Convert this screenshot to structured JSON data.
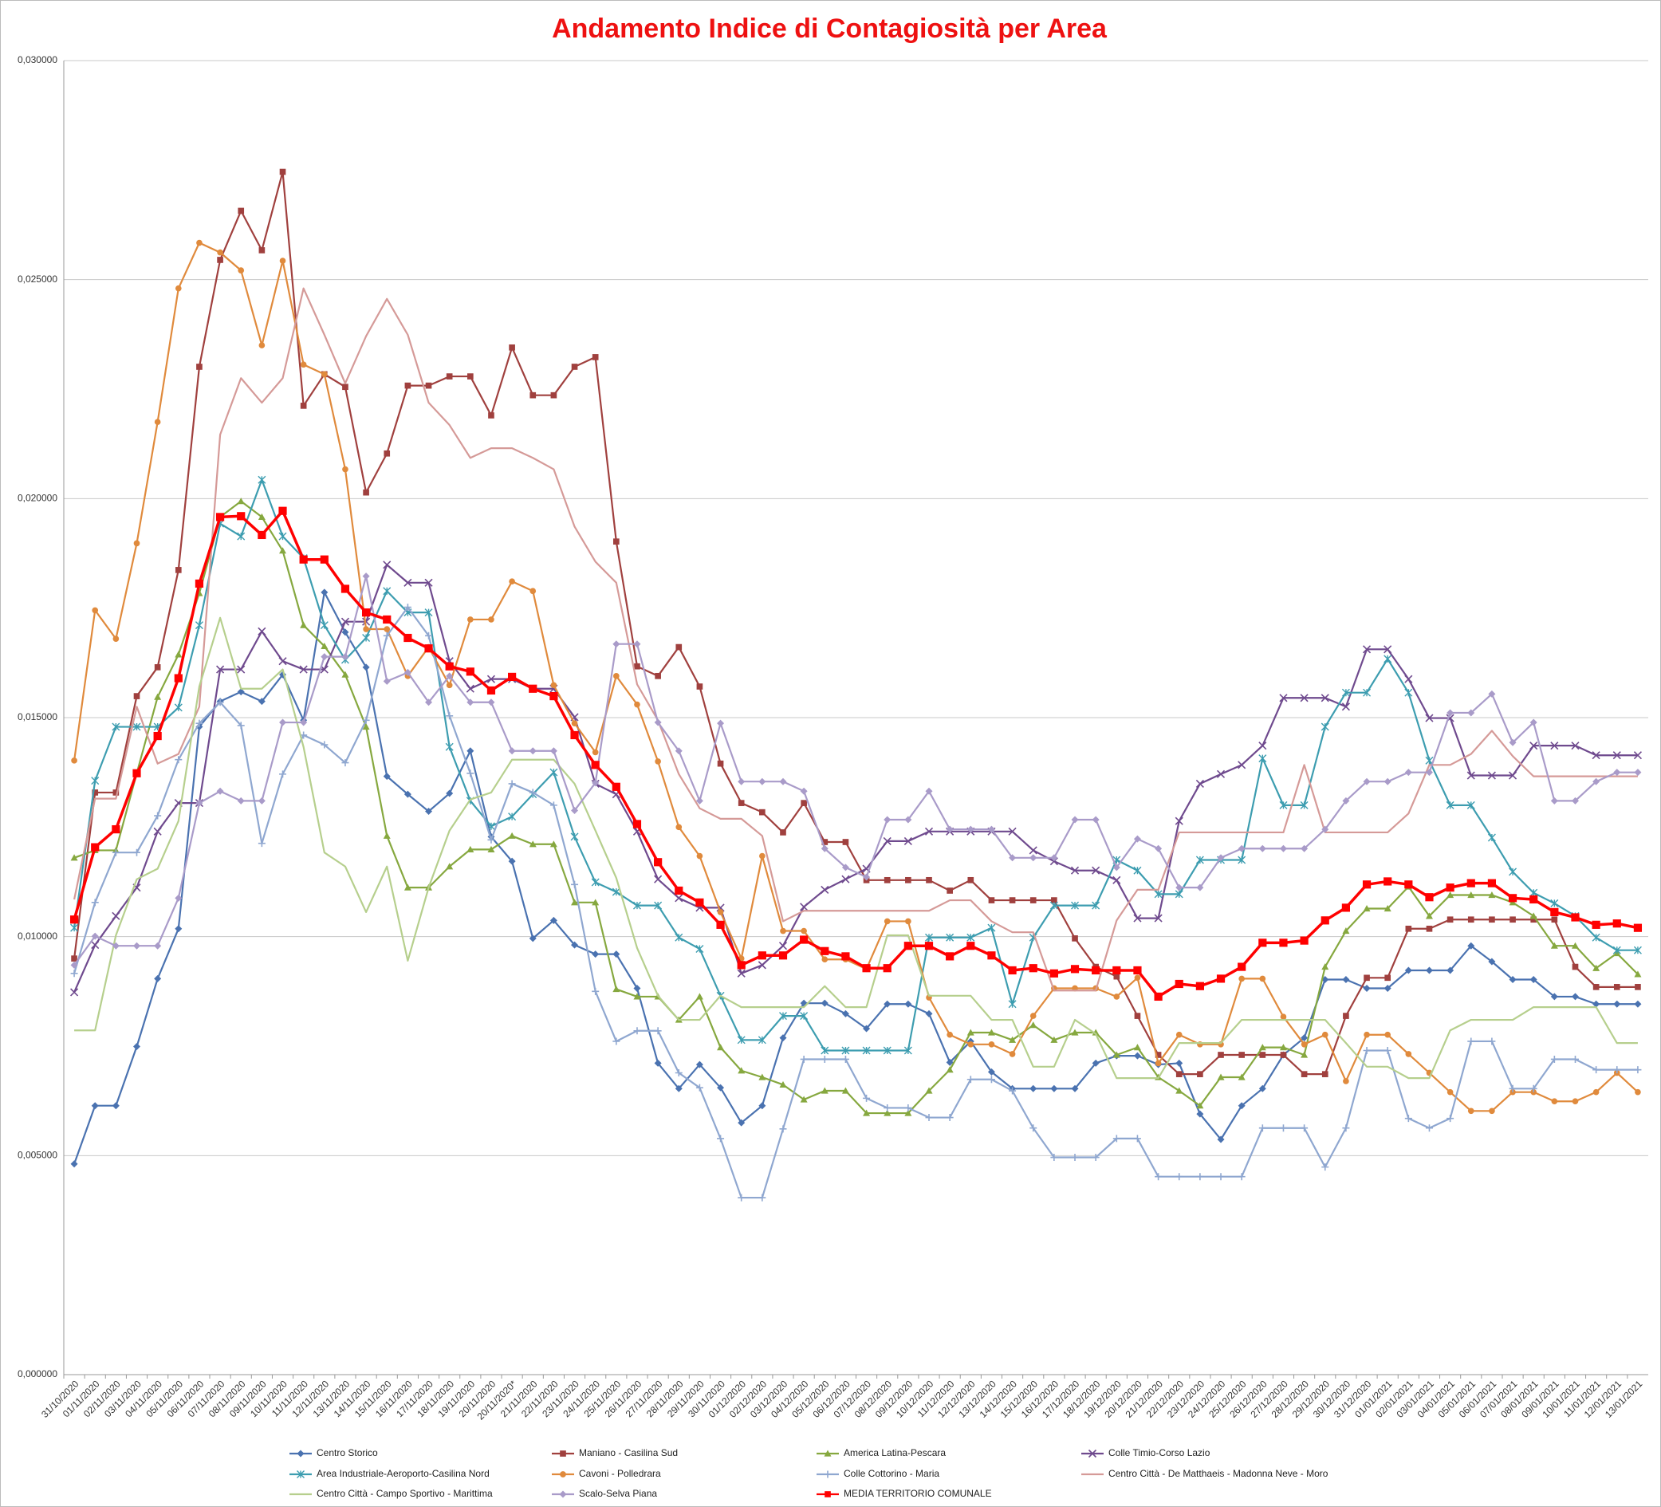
{
  "chart_data": {
    "type": "line",
    "title": "Andamento Indice di Contagiosità per Area",
    "categories": [
      "31/10/2020",
      "01/11/2020",
      "02/11/2020",
      "03/11/2020",
      "04/11/2020",
      "05/11/2020",
      "06/11/2020",
      "07/11/2020",
      "08/11/2020",
      "09/11/2020",
      "10/11/2020",
      "11/11/2020",
      "12/11/2020",
      "13/11/2020",
      "14/11/2020",
      "15/11/2020",
      "16/11/2020",
      "17/11/2020",
      "18/11/2020",
      "19/11/2020",
      "20/11/2020",
      "20/11/2020*",
      "21/11/2020",
      "22/11/2020",
      "23/11/2020",
      "24/11/2020",
      "25/11/2020",
      "26/11/2020",
      "27/11/2020",
      "28/11/2020",
      "29/11/2020",
      "30/11/2020",
      "01/12/2020",
      "02/12/2020",
      "03/12/2020",
      "04/12/2020",
      "05/12/2020",
      "06/12/2020",
      "07/12/2020",
      "08/12/2020",
      "09/12/2020",
      "10/12/2020",
      "11/12/2020",
      "12/12/2020",
      "13/12/2020",
      "14/12/2020",
      "15/12/2020",
      "16/12/2020",
      "17/12/2020",
      "18/12/2020",
      "19/12/2020",
      "20/12/2020",
      "21/12/2020",
      "22/12/2020",
      "23/12/2020",
      "24/12/2020",
      "25/12/2020",
      "26/12/2020",
      "27/12/2020",
      "28/12/2020",
      "29/12/2020",
      "30/12/2020",
      "31/12/2020",
      "01/01/2021",
      "02/01/2021",
      "03/01/2021",
      "04/01/2021",
      "05/01/2021",
      "06/01/2021",
      "07/01/2021",
      "08/01/2021",
      "09/01/2021",
      "10/01/2021",
      "11/01/2021",
      "12/01/2021",
      "13/01/2021"
    ],
    "ylim": [
      0,
      0.03
    ],
    "yticks": [
      {
        "value": 0,
        "label": "0,000000"
      },
      {
        "value": 0.005,
        "label": "0,005000"
      },
      {
        "value": 0.01,
        "label": "0,010000"
      },
      {
        "value": 0.015,
        "label": "0,015000"
      },
      {
        "value": 0.02,
        "label": "0,020000"
      },
      {
        "value": 0.025,
        "label": "0,025000"
      },
      {
        "value": 0.03,
        "label": "0,030000"
      }
    ],
    "grid": true,
    "legend": "bottom",
    "series": [
      {
        "name": "Centro Storico",
        "color": "#4a72b0",
        "marker": "diamond",
        "values": [
          0.00481,
          0.00614,
          0.00614,
          0.00749,
          0.00904,
          0.01018,
          0.01479,
          0.01537,
          0.01559,
          0.01537,
          0.01598,
          0.01494,
          0.01786,
          0.01695,
          0.01615,
          0.01366,
          0.01325,
          0.01286,
          0.01327,
          0.01424,
          0.01228,
          0.01172,
          0.00996,
          0.01037,
          0.00981,
          0.0096,
          0.0096,
          0.00882,
          0.00711,
          0.00653,
          0.00708,
          0.00655,
          0.00575,
          0.00614,
          0.00769,
          0.00848,
          0.00848,
          0.00824,
          0.0079,
          0.00846,
          0.00846,
          0.00824,
          0.00713,
          0.00761,
          0.00691,
          0.00653,
          0.00653,
          0.00653,
          0.00653,
          0.00711,
          0.00728,
          0.00728,
          0.00708,
          0.00711,
          0.00595,
          0.00537,
          0.00614,
          0.00653,
          0.0073,
          0.00769,
          0.00902,
          0.00902,
          0.00882,
          0.00882,
          0.00923,
          0.00923,
          0.00923,
          0.00979,
          0.00943,
          0.00902,
          0.00902,
          0.00863,
          0.00863,
          0.00846,
          0.00846,
          0.00846
        ]
      },
      {
        "name": "Maniano - Casilina Sud",
        "color": "#a0403e",
        "marker": "square",
        "values": [
          0.0095,
          0.01329,
          0.01329,
          0.01549,
          0.01615,
          0.01837,
          0.02301,
          0.02545,
          0.02657,
          0.02567,
          0.02746,
          0.02212,
          0.02284,
          0.02255,
          0.02014,
          0.02103,
          0.02258,
          0.02258,
          0.02279,
          0.02279,
          0.0219,
          0.02345,
          0.02236,
          0.02236,
          0.02301,
          0.02323,
          0.01902,
          0.01617,
          0.01595,
          0.01661,
          0.01571,
          0.01395,
          0.01305,
          0.01284,
          0.01238,
          0.01305,
          0.01216,
          0.01216,
          0.01129,
          0.01129,
          0.01129,
          0.01129,
          0.01105,
          0.01129,
          0.01083,
          0.01083,
          0.01083,
          0.01083,
          0.00996,
          0.00931,
          0.00909,
          0.00819,
          0.0073,
          0.00686,
          0.00686,
          0.0073,
          0.0073,
          0.0073,
          0.0073,
          0.00686,
          0.00686,
          0.00819,
          0.00906,
          0.00906,
          0.01018,
          0.01018,
          0.01039,
          0.01039,
          0.01039,
          0.01039,
          0.01039,
          0.01039,
          0.00931,
          0.00885,
          0.00885,
          0.00885
        ]
      },
      {
        "name": "America Latina-Pescara",
        "color": "#86a83f",
        "marker": "triangle",
        "values": [
          0.0118,
          0.01197,
          0.01197,
          0.01373,
          0.01547,
          0.01644,
          0.01784,
          0.01958,
          0.01994,
          0.01958,
          0.01881,
          0.01711,
          0.01663,
          0.01598,
          0.01479,
          0.0123,
          0.01112,
          0.01112,
          0.0116,
          0.01199,
          0.01199,
          0.0123,
          0.01211,
          0.01211,
          0.01078,
          0.01078,
          0.0088,
          0.00863,
          0.00863,
          0.0081,
          0.00863,
          0.00747,
          0.00694,
          0.00679,
          0.00662,
          0.00628,
          0.00648,
          0.00648,
          0.00597,
          0.00597,
          0.00597,
          0.00648,
          0.00696,
          0.00781,
          0.00781,
          0.00764,
          0.00798,
          0.00764,
          0.00781,
          0.00781,
          0.0073,
          0.00747,
          0.00679,
          0.00648,
          0.00614,
          0.00679,
          0.00679,
          0.00747,
          0.00747,
          0.0073,
          0.00931,
          0.01013,
          0.01064,
          0.01064,
          0.01114,
          0.01047,
          0.01095,
          0.01095,
          0.01095,
          0.01078,
          0.01047,
          0.00979,
          0.00979,
          0.00928,
          0.00962,
          0.00914
        ]
      },
      {
        "name": "Colle Timio-Corso Lazio",
        "color": "#6f4a8e",
        "marker": "x",
        "values": [
          0.00873,
          0.00981,
          0.01047,
          0.01112,
          0.0124,
          0.01305,
          0.01305,
          0.0161,
          0.0161,
          0.01697,
          0.01629,
          0.0161,
          0.0161,
          0.01719,
          0.01719,
          0.01849,
          0.01808,
          0.01808,
          0.01629,
          0.01566,
          0.01588,
          0.01588,
          0.01566,
          0.01566,
          0.01501,
          0.01349,
          0.01325,
          0.0124,
          0.01131,
          0.01088,
          0.01066,
          0.01066,
          0.00916,
          0.00935,
          0.00979,
          0.01068,
          0.01107,
          0.01131,
          0.01155,
          0.01218,
          0.01218,
          0.0124,
          0.0124,
          0.0124,
          0.0124,
          0.0124,
          0.01197,
          0.01172,
          0.01151,
          0.01151,
          0.01129,
          0.01042,
          0.01042,
          0.01264,
          0.01349,
          0.01371,
          0.01392,
          0.01436,
          0.01545,
          0.01545,
          0.01545,
          0.01525,
          0.01656,
          0.01656,
          0.01588,
          0.01499,
          0.01499,
          0.01368,
          0.01368,
          0.01368,
          0.01436,
          0.01436,
          0.01436,
          0.01414,
          0.01414,
          0.01414
        ]
      },
      {
        "name": "Area Industriale-Aeroporto-Casilina Nord",
        "color": "#3d9db0",
        "marker": "asterisk",
        "values": [
          0.0102,
          0.01356,
          0.01479,
          0.01479,
          0.01479,
          0.01523,
          0.01711,
          0.01943,
          0.01914,
          0.02043,
          0.01914,
          0.01864,
          0.01711,
          0.01632,
          0.01682,
          0.01789,
          0.0174,
          0.0174,
          0.01433,
          0.0131,
          0.01252,
          0.01274,
          0.01325,
          0.01375,
          0.01228,
          0.01124,
          0.01102,
          0.01071,
          0.01071,
          0.00998,
          0.00972,
          0.00865,
          0.00764,
          0.00764,
          0.00819,
          0.00819,
          0.0074,
          0.0074,
          0.0074,
          0.0074,
          0.0074,
          0.00998,
          0.00998,
          0.00998,
          0.0102,
          0.00846,
          0.00998,
          0.01071,
          0.01071,
          0.01071,
          0.01175,
          0.01151,
          0.01097,
          0.01097,
          0.01175,
          0.01175,
          0.01175,
          0.01407,
          0.013,
          0.013,
          0.01479,
          0.01557,
          0.01557,
          0.01634,
          0.01557,
          0.01402,
          0.013,
          0.013,
          0.01226,
          0.01148,
          0.011,
          0.01076,
          0.01047,
          0.00998,
          0.00969,
          0.00969
        ]
      },
      {
        "name": "Cavoni - Polledrara",
        "color": "#e08a3c",
        "marker": "circle",
        "values": [
          0.01402,
          0.01745,
          0.0168,
          0.01898,
          0.02175,
          0.0248,
          0.02584,
          0.02562,
          0.02521,
          0.0235,
          0.02543,
          0.02306,
          0.02284,
          0.02067,
          0.01702,
          0.01702,
          0.01595,
          0.01661,
          0.01574,
          0.01724,
          0.01724,
          0.01811,
          0.01789,
          0.01574,
          0.01487,
          0.01421,
          0.01595,
          0.0153,
          0.014,
          0.0125,
          0.01184,
          0.01056,
          0.0095,
          0.01184,
          0.01013,
          0.01013,
          0.00948,
          0.00948,
          0.00926,
          0.01035,
          0.01035,
          0.00861,
          0.00776,
          0.00754,
          0.00754,
          0.00732,
          0.00819,
          0.00882,
          0.00882,
          0.00882,
          0.00863,
          0.00906,
          0.00711,
          0.00776,
          0.00754,
          0.00754,
          0.00904,
          0.00904,
          0.00817,
          0.00754,
          0.00776,
          0.0067,
          0.00776,
          0.00776,
          0.00732,
          0.00689,
          0.00645,
          0.00602,
          0.00602,
          0.00645,
          0.00645,
          0.00624,
          0.00624,
          0.00645,
          0.00689,
          0.00645
        ]
      },
      {
        "name": "Colle Cottorino - Maria",
        "color": "#8fa7d0",
        "marker": "plus",
        "values": [
          0.00916,
          0.01078,
          0.01192,
          0.01192,
          0.01276,
          0.01404,
          0.01487,
          0.01535,
          0.01482,
          0.01213,
          0.01371,
          0.0146,
          0.01438,
          0.01397,
          0.01494,
          0.01687,
          0.01752,
          0.01687,
          0.01504,
          0.01373,
          0.01221,
          0.01349,
          0.01329,
          0.013,
          0.01119,
          0.00875,
          0.00761,
          0.00785,
          0.00785,
          0.00689,
          0.00655,
          0.00539,
          0.00404,
          0.00404,
          0.00561,
          0.0072,
          0.0072,
          0.0072,
          0.00631,
          0.00609,
          0.00609,
          0.00587,
          0.00587,
          0.00674,
          0.00674,
          0.00648,
          0.00563,
          0.00496,
          0.00496,
          0.00496,
          0.00539,
          0.00539,
          0.00452,
          0.00452,
          0.00452,
          0.00452,
          0.00452,
          0.00563,
          0.00563,
          0.00563,
          0.00474,
          0.00563,
          0.0074,
          0.0074,
          0.00585,
          0.00563,
          0.00585,
          0.00761,
          0.00761,
          0.00653,
          0.00653,
          0.0072,
          0.0072,
          0.00696,
          0.00696,
          0.00696
        ]
      },
      {
        "name": "Centro Città - De Matthaeis - Madonna Neve - Moro",
        "color": "#d59a98",
        "marker": "none",
        "values": [
          0.01085,
          0.01315,
          0.01315,
          0.01525,
          0.01395,
          0.01417,
          0.01525,
          0.02146,
          0.02275,
          0.02219,
          0.02275,
          0.0248,
          0.02374,
          0.02263,
          0.02371,
          0.02456,
          0.02374,
          0.02219,
          0.02168,
          0.02093,
          0.02115,
          0.02115,
          0.02093,
          0.02067,
          0.01936,
          0.01856,
          0.01808,
          0.01576,
          0.01494,
          0.01371,
          0.01293,
          0.01269,
          0.01269,
          0.0123,
          0.01035,
          0.01059,
          0.01059,
          0.01059,
          0.01059,
          0.01059,
          0.01059,
          0.01059,
          0.01083,
          0.01083,
          0.01035,
          0.0101,
          0.0101,
          0.00877,
          0.00877,
          0.00877,
          0.01037,
          0.01107,
          0.01107,
          0.01238,
          0.01238,
          0.01238,
          0.01238,
          0.01238,
          0.01238,
          0.01392,
          0.01238,
          0.01238,
          0.01238,
          0.01238,
          0.01281,
          0.01392,
          0.01392,
          0.01417,
          0.0147,
          0.01412,
          0.01366,
          0.01366,
          0.01366,
          0.01366,
          0.01366,
          0.01366
        ]
      },
      {
        "name": "Centro Città - Campo Sportivo - Marittima",
        "color": "#b6cf8d",
        "marker": "none",
        "values": [
          0.00786,
          0.00786,
          0.01003,
          0.01131,
          0.01155,
          0.01264,
          0.01571,
          0.01728,
          0.01566,
          0.01566,
          0.0161,
          0.01433,
          0.01192,
          0.0116,
          0.01056,
          0.0116,
          0.00945,
          0.01112,
          0.01242,
          0.01313,
          0.01329,
          0.01404,
          0.01404,
          0.01404,
          0.01349,
          0.01242,
          0.01134,
          0.00974,
          0.00865,
          0.0081,
          0.0081,
          0.00865,
          0.00839,
          0.00839,
          0.00839,
          0.00839,
          0.00887,
          0.00839,
          0.00839,
          0.01003,
          0.01003,
          0.00865,
          0.00865,
          0.00865,
          0.0081,
          0.0081,
          0.00703,
          0.00703,
          0.0081,
          0.00778,
          0.00677,
          0.00677,
          0.00677,
          0.00757,
          0.00757,
          0.00757,
          0.0081,
          0.0081,
          0.0081,
          0.0081,
          0.0081,
          0.00757,
          0.00703,
          0.00703,
          0.00677,
          0.00677,
          0.00786,
          0.0081,
          0.0081,
          0.0081,
          0.00839,
          0.00839,
          0.00839,
          0.00839,
          0.00757,
          0.00757
        ]
      },
      {
        "name": "Scalo-Selva Piana",
        "color": "#a99bc9",
        "marker": "diamond",
        "values": [
          0.00935,
          0.01001,
          0.00979,
          0.00979,
          0.00979,
          0.01088,
          0.01305,
          0.01332,
          0.0131,
          0.0131,
          0.01489,
          0.01489,
          0.01639,
          0.01639,
          0.01823,
          0.01583,
          0.01603,
          0.01535,
          0.01595,
          0.01535,
          0.01535,
          0.01424,
          0.01424,
          0.01424,
          0.01288,
          0.01351,
          0.01668,
          0.01668,
          0.01489,
          0.01424,
          0.0131,
          0.01487,
          0.01354,
          0.01354,
          0.01354,
          0.01332,
          0.01201,
          0.01158,
          0.01136,
          0.01267,
          0.01267,
          0.01332,
          0.01245,
          0.01245,
          0.01245,
          0.0118,
          0.0118,
          0.0118,
          0.01267,
          0.01267,
          0.01158,
          0.01223,
          0.01201,
          0.01112,
          0.01112,
          0.0118,
          0.01201,
          0.01201,
          0.01201,
          0.01201,
          0.01245,
          0.0131,
          0.01354,
          0.01354,
          0.01375,
          0.01375,
          0.01511,
          0.01511,
          0.01554,
          0.01443,
          0.01489,
          0.0131,
          0.0131,
          0.01354,
          0.01375,
          0.01375
        ]
      },
      {
        "name": "MEDIA TERRITORIO COMUNALE",
        "color": "#ff0000",
        "marker": "square",
        "values": [
          0.01039,
          0.01204,
          0.01245,
          0.01373,
          0.01458,
          0.0159,
          0.01806,
          0.01958,
          0.0196,
          0.01917,
          0.01972,
          0.01861,
          0.01861,
          0.01794,
          0.0174,
          0.01724,
          0.01682,
          0.01658,
          0.01617,
          0.01605,
          0.01562,
          0.01593,
          0.01566,
          0.01549,
          0.0146,
          0.01392,
          0.01342,
          0.01257,
          0.0117,
          0.01105,
          0.01078,
          0.01027,
          0.00935,
          0.00957,
          0.00957,
          0.00993,
          0.00967,
          0.00955,
          0.00928,
          0.00928,
          0.00979,
          0.00979,
          0.00955,
          0.00979,
          0.00957,
          0.00923,
          0.00928,
          0.00916,
          0.00926,
          0.00923,
          0.00923,
          0.00923,
          0.00863,
          0.00892,
          0.00887,
          0.00904,
          0.00931,
          0.00986,
          0.00986,
          0.00991,
          0.01037,
          0.01066,
          0.01119,
          0.01126,
          0.01119,
          0.0109,
          0.01112,
          0.01122,
          0.01122,
          0.01088,
          0.01085,
          0.01056,
          0.01044,
          0.01027,
          0.0103,
          0.0102
        ]
      }
    ]
  }
}
